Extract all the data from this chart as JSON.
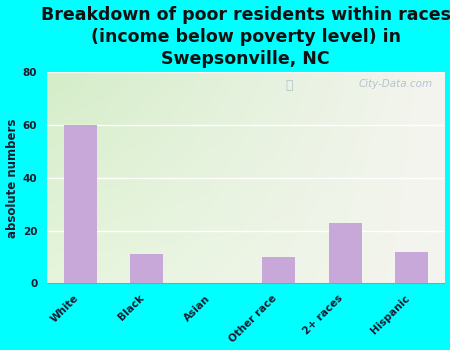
{
  "categories": [
    "White",
    "Black",
    "Asian",
    "Other race",
    "2+ races",
    "Hispanic"
  ],
  "values": [
    60,
    11,
    0,
    10,
    23,
    12
  ],
  "bar_color": "#c8a8d8",
  "title": "Breakdown of poor residents within races\n(income below poverty level) in\nSwepsonville, NC",
  "ylabel": "absolute numbers",
  "ylim": [
    0,
    80
  ],
  "yticks": [
    0,
    20,
    40,
    60,
    80
  ],
  "grad_color_topleft": "#d4edc8",
  "grad_color_right": "#f5f5f0",
  "outer_background": "#00ffff",
  "watermark": "City-Data.com",
  "title_fontsize": 12.5,
  "ylabel_fontsize": 8.5,
  "tick_fontsize": 7.5
}
